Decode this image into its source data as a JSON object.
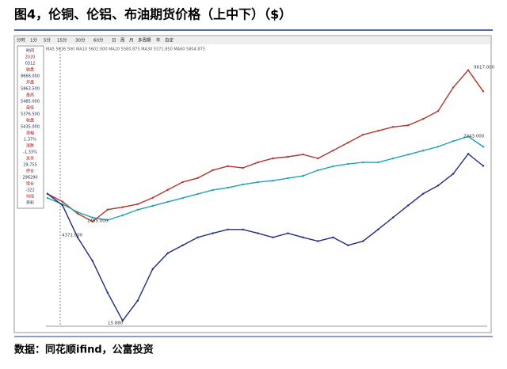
{
  "header": {
    "title": "图4，伦铜、伦铝、布油期货价格（上中下）（$）"
  },
  "toolbar": [
    "分时",
    "1分",
    "5分",
    "15分",
    "30分",
    "60分",
    "日",
    "周",
    "月",
    "多周期",
    "年",
    "自定"
  ],
  "ma_text": "MA5 5636.500 MA10 5602.000 MA20 5580.875 MA30 5571.850 MA60 5804.875",
  "info_panel": [
    "时间",
    "2020",
    "0312",
    "收盘",
    "8666.000",
    "开盘",
    "5863.500",
    "最高",
    "5485.000",
    "最低",
    "5376.500",
    "收盘",
    "5435.000",
    "涨幅",
    "1.37%",
    "涨跌",
    "-1.33%",
    "总手",
    "29,755",
    "持仓",
    "296290",
    "增仓",
    "-322",
    "均线",
    "资料"
  ],
  "chart_data": {
    "type": "line",
    "annotations": [
      "9617.000",
      "4371.000",
      "2243.000",
      "1455.000",
      "15.880"
    ],
    "series": [
      {
        "color": "#b8342a",
        "ylim": [
          800,
          10400
        ],
        "values": [
          5330,
          5060,
          4650,
          4371,
          4785,
          4870,
          4975,
          5195,
          5470,
          5740,
          5880,
          6150,
          6290,
          6230,
          6420,
          6560,
          6615,
          6695,
          6560,
          6830,
          7105,
          7380,
          7515,
          7650,
          7705,
          7925,
          8200,
          9015,
          9617,
          8880
        ]
      },
      {
        "color": "#1aa3b8",
        "ylim": [
          470,
          3080
        ],
        "values": [
          1663,
          1604,
          1530,
          1478,
          1455,
          1500,
          1552,
          1589,
          1626,
          1663,
          1701,
          1738,
          1760,
          1790,
          1812,
          1827,
          1849,
          1871,
          1924,
          1961,
          1983,
          1998,
          1998,
          2035,
          2072,
          2109,
          2146,
          2198,
          2243,
          2146
        ]
      },
      {
        "color": "#1f2a8a",
        "ylim": [
          14.4,
          116
        ],
        "values": [
          62.4,
          58.1,
          46.4,
          37.7,
          26.1,
          15.88,
          23.2,
          34.8,
          40.6,
          43.5,
          46.4,
          47.9,
          49.3,
          49.3,
          47.9,
          46.4,
          47.9,
          46.4,
          45.0,
          46.4,
          43.5,
          45.0,
          49.3,
          53.7,
          58.1,
          62.4,
          65.4,
          69.7,
          77.0,
          72.6
        ]
      }
    ]
  },
  "footer": {
    "source": "数据：同花顺ifind，公富投资"
  }
}
